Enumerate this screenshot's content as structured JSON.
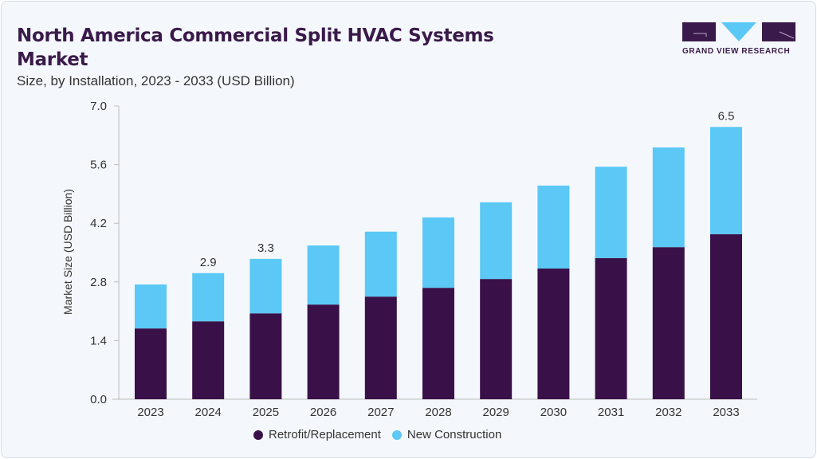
{
  "header": {
    "title": "North America Commercial Split HVAC Systems Market",
    "subtitle": "Size, by Installation, 2023 - 2033 (USD Billion)"
  },
  "logo": {
    "text": "GRAND VIEW RESEARCH",
    "colors": {
      "dark": "#3a1a4a",
      "light": "#5bc8f5"
    }
  },
  "chart_data": {
    "type": "bar",
    "stacked": true,
    "title": "North America Commercial Split HVAC Systems Market",
    "subtitle": "Size, by Installation, 2023 - 2033 (USD Billion)",
    "xlabel": "",
    "ylabel": "Market Size (USD Billion)",
    "ylim": [
      0,
      7.0
    ],
    "yticks": [
      "0.0",
      "1.4",
      "2.8",
      "4.2",
      "5.6",
      "7.0"
    ],
    "grid": false,
    "legend_position": "bottom",
    "categories": [
      "2023",
      "2024",
      "2025",
      "2026",
      "2027",
      "2028",
      "2029",
      "2030",
      "2031",
      "2032",
      "2033"
    ],
    "series": [
      {
        "name": "Retrofit/Replacement",
        "color": "#3a1049",
        "values": [
          1.69,
          1.86,
          2.05,
          2.26,
          2.45,
          2.66,
          2.87,
          3.12,
          3.37,
          3.63,
          3.94
        ]
      },
      {
        "name": "New Construction",
        "color": "#5bc8f5",
        "values": [
          1.05,
          1.15,
          1.3,
          1.41,
          1.55,
          1.68,
          1.83,
          1.98,
          2.18,
          2.38,
          2.56
        ]
      }
    ],
    "data_labels": [
      {
        "category": "2024",
        "text": "2.9"
      },
      {
        "category": "2025",
        "text": "3.3"
      },
      {
        "category": "2033",
        "text": "6.5"
      }
    ]
  }
}
